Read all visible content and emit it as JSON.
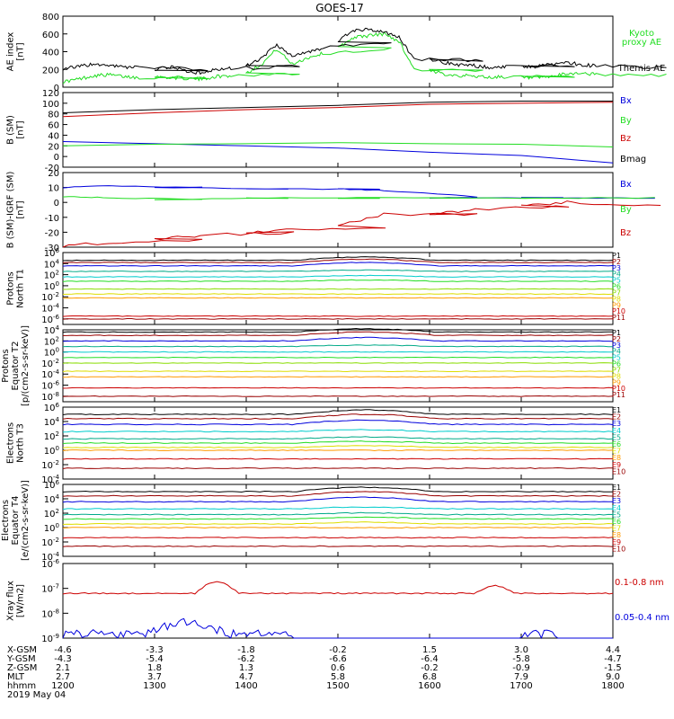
{
  "title": "GOES-17",
  "time_ticks": [
    "1200",
    "1300",
    "1400",
    "1500",
    "1600",
    "1700",
    "1800"
  ],
  "colors": {
    "black": "#000000",
    "green": "#22dd22",
    "blue": "#0000dd",
    "red": "#cc0000",
    "cyan": "#00cccc",
    "yellow": "#dddd00",
    "orange": "#ff9900",
    "purple": "#7700aa",
    "teal": "#00aa88",
    "lime": "#88dd00",
    "darkred": "#990000"
  },
  "chart_data": [
    {
      "type": "line",
      "ylabel": "AE index [nT]",
      "ytick_labels": [
        "800",
        "600",
        "400",
        "200",
        "0"
      ],
      "ylim": [
        0,
        800
      ],
      "series": [
        {
          "name": "Kyoto proxy AE",
          "color": "green",
          "x": [
            1200,
            1210,
            1220,
            1230,
            1240,
            1250,
            1300,
            1310,
            1320,
            1330,
            1340,
            1350,
            1400,
            1410,
            1420,
            1430,
            1440,
            1450,
            1500,
            1510,
            1520,
            1530,
            1540,
            1550,
            1600,
            1610,
            1620,
            1630,
            1640,
            1650,
            1700,
            1710,
            1720,
            1730,
            1740,
            1750,
            1800
          ],
          "y": [
            60,
            90,
            130,
            140,
            120,
            110,
            115,
            110,
            100,
            90,
            120,
            130,
            160,
            260,
            430,
            260,
            330,
            380,
            440,
            560,
            580,
            600,
            520,
            200,
            180,
            150,
            130,
            125,
            110,
            120,
            110,
            100,
            120,
            150,
            160,
            140,
            130
          ]
        },
        {
          "name": "Themis AE",
          "color": "black",
          "x": [
            1200,
            1210,
            1220,
            1230,
            1240,
            1250,
            1300,
            1310,
            1320,
            1330,
            1340,
            1350,
            1400,
            1410,
            1420,
            1430,
            1440,
            1450,
            1500,
            1510,
            1520,
            1530,
            1540,
            1550,
            1600,
            1610,
            1620,
            1630,
            1640,
            1650,
            1700,
            1710,
            1720,
            1730,
            1740,
            1750,
            1800
          ],
          "y": [
            210,
            230,
            260,
            240,
            230,
            220,
            200,
            230,
            180,
            160,
            200,
            210,
            240,
            320,
            480,
            350,
            400,
            440,
            520,
            640,
            650,
            620,
            560,
            320,
            300,
            280,
            250,
            240,
            220,
            230,
            240,
            230,
            260,
            280,
            250,
            240,
            220
          ]
        }
      ]
    },
    {
      "type": "line",
      "ylabel": "B (SM) [nT]",
      "ytick_labels": [
        "120",
        "100",
        "80",
        "60",
        "40",
        "20",
        "0",
        "-20"
      ],
      "ylim": [
        -20,
        120
      ],
      "series": [
        {
          "name": "Bx",
          "color": "blue",
          "x": [
            1200,
            1300,
            1400,
            1500,
            1600,
            1700,
            1800
          ],
          "y": [
            28,
            24,
            20,
            16,
            8,
            2,
            -12
          ]
        },
        {
          "name": "By",
          "color": "green",
          "x": [
            1200,
            1300,
            1400,
            1500,
            1600,
            1700,
            1800
          ],
          "y": [
            20,
            23,
            24,
            26,
            24,
            23,
            18
          ]
        },
        {
          "name": "Bz",
          "color": "red",
          "x": [
            1200,
            1300,
            1400,
            1500,
            1600,
            1700,
            1800
          ],
          "y": [
            75,
            82,
            88,
            92,
            98,
            100,
            102
          ]
        },
        {
          "name": "Bmag",
          "color": "black",
          "x": [
            1200,
            1300,
            1400,
            1500,
            1600,
            1700,
            1800
          ],
          "y": [
            82,
            88,
            92,
            96,
            102,
            104,
            104
          ]
        }
      ]
    },
    {
      "type": "line",
      "ylabel": "B (SM)-IGRF (SM) [nT]",
      "ytick_labels": [
        "20",
        "10",
        "0",
        "-10",
        "-20",
        "-30"
      ],
      "ylim": [
        -30,
        20
      ],
      "series": [
        {
          "name": "Bx",
          "color": "blue",
          "x": [
            1200,
            1230,
            1300,
            1400,
            1500,
            1530,
            1600,
            1700,
            1800
          ],
          "y": [
            10,
            11,
            10,
            9,
            9,
            8,
            3,
            3,
            3
          ]
        },
        {
          "name": "By",
          "color": "green",
          "x": [
            1200,
            1230,
            1300,
            1400,
            1500,
            1600,
            1700,
            1800
          ],
          "y": [
            4,
            3,
            2,
            3,
            3,
            3,
            3,
            3
          ]
        },
        {
          "name": "Bz",
          "color": "red",
          "x": [
            1200,
            1230,
            1300,
            1330,
            1400,
            1430,
            1500,
            1530,
            1600,
            1630,
            1700,
            1730,
            1800
          ],
          "y": [
            -29,
            -27,
            -25,
            -22,
            -20,
            -18,
            -16,
            -8,
            -8,
            -5,
            -2,
            0,
            -2
          ]
        }
      ]
    },
    {
      "type": "line",
      "ylabel": "Protons North T1",
      "scale": "log",
      "ytick_labels": [
        "10^6",
        "10^4",
        "10^2",
        "10^0",
        "10^-2",
        "10^-4",
        "10^-6"
      ],
      "ylim_exp": [
        -7,
        6
      ],
      "series_names": [
        "P1",
        "P2",
        "P3",
        "P4",
        "P5",
        "P6",
        "P7",
        "P8",
        "P9",
        "P10",
        "P11"
      ]
    },
    {
      "type": "line",
      "ylabel": "Protons Equator T2 [p/(cm^2-s-sr-keV)]",
      "scale": "log",
      "ytick_labels": [
        "10^4",
        "10^2",
        "10^0",
        "10^-2",
        "10^-4",
        "10^-6",
        "10^-8"
      ],
      "ylim_exp": [
        -9,
        4
      ],
      "series_names": [
        "P1",
        "P2",
        "P3",
        "P4",
        "P5",
        "P6",
        "P7",
        "P8",
        "P9",
        "P10",
        "P11"
      ]
    },
    {
      "type": "line",
      "ylabel": "Electrons North T3",
      "scale": "log",
      "ytick_labels": [
        "10^6",
        "10^4",
        "10^2",
        "10^0",
        "10^-2",
        "10^-4"
      ],
      "ylim_exp": [
        -4,
        6
      ],
      "series_names": [
        "E1",
        "E2",
        "E3",
        "E4",
        "E5",
        "E6",
        "E7",
        "E8",
        "E9",
        "E10"
      ]
    },
    {
      "type": "line",
      "ylabel": "Electrons Equator T4 [e/(cm^2-s-sr-keV)]",
      "scale": "log",
      "ytick_labels": [
        "10^6",
        "10^4",
        "10^2",
        "10^0",
        "10^-2",
        "10^-4"
      ],
      "ylim_exp": [
        -4,
        6
      ],
      "series_names": [
        "E1",
        "E2",
        "E3",
        "E4",
        "E5",
        "E6",
        "E7",
        "E8",
        "E9",
        "E10"
      ]
    },
    {
      "type": "line",
      "ylabel": "Xray flux [W/m^2]",
      "scale": "log",
      "ytick_labels": [
        "10^-6",
        "10^-7",
        "10^-8",
        "10^-9"
      ],
      "ylim_exp": [
        -9,
        -6
      ],
      "series": [
        {
          "name": "0.1-0.8 nm",
          "color": "red"
        },
        {
          "name": "0.05-0.4 nm",
          "color": "blue"
        }
      ]
    }
  ],
  "legends": {
    "ae": [
      "Kyoto",
      "proxy AE",
      "Themis AE"
    ],
    "b": [
      "Bx",
      "By",
      "Bz",
      "Bmag"
    ],
    "db": [
      "Bx",
      "By",
      "Bz"
    ],
    "xray": [
      "0.1-0.8 nm",
      "0.05-0.4 nm"
    ]
  },
  "ephemeris": {
    "labels": [
      "X-GSM",
      "Y-GSM",
      "Z-GSM",
      "MLT",
      "hhmm",
      "2019 May 04"
    ],
    "rows": [
      [
        "-4.6",
        "-3.3",
        "-1.8",
        "-0.2",
        "1.5",
        "3.0",
        "4.4"
      ],
      [
        "-4.3",
        "-5.4",
        "-6.2",
        "-6.6",
        "-6.4",
        "-5.8",
        "-4.7"
      ],
      [
        "2.1",
        "1.8",
        "1.3",
        "0.6",
        "-0.2",
        "-0.9",
        "-1.5"
      ],
      [
        "2.7",
        "3.7",
        "4.7",
        "5.8",
        "6.8",
        "7.9",
        "9.0"
      ]
    ]
  }
}
